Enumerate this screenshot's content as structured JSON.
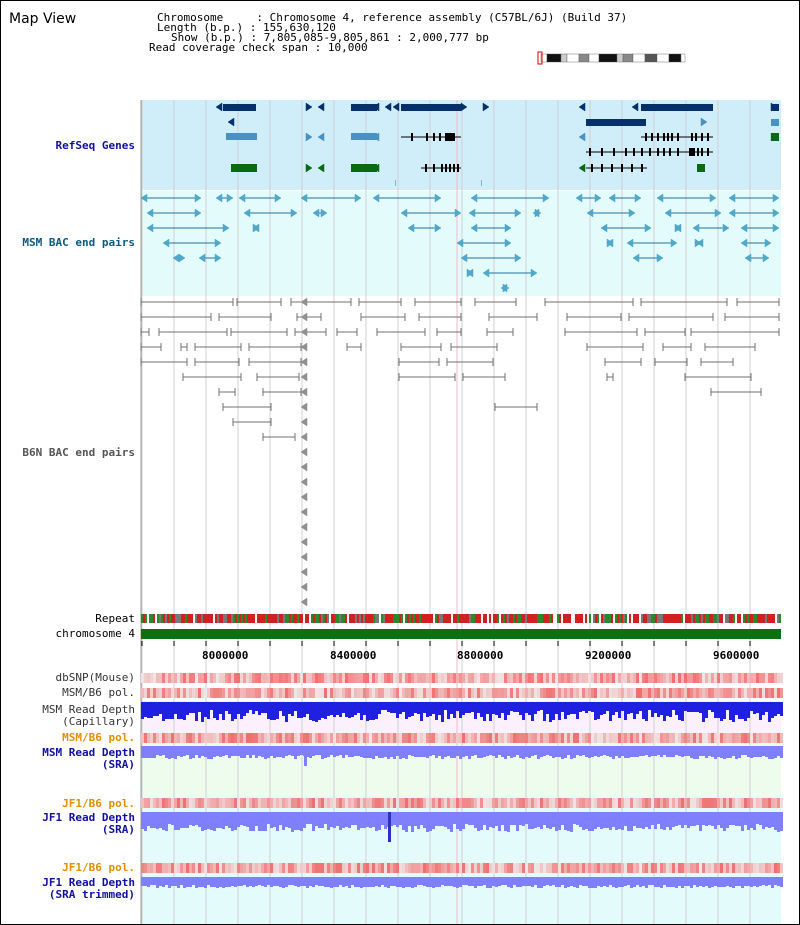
{
  "title": "Map View",
  "info": {
    "chromosome_label": "Chromosome     ",
    "chromosome_value": "Chromosome 4, reference assembly (C57BL/6J) (Build 37)",
    "length_label": "Length (b.p.) ",
    "length_value": "155,630,120",
    "show_label": "Show (b.p.) ",
    "show_value": "7,805,085-9,805,861 : 2,000,777 bp",
    "coverage_label": "Read coverage check span",
    "coverage_value": "10,000"
  },
  "tracks": {
    "refseq": "RefSeq Genes",
    "msm_bac": "MSM BAC end pairs",
    "b6n_bac": "B6N BAC end pairs",
    "repeat": "Repeat",
    "chromosome": "chromosome 4",
    "dbsnp": "dbSNP(Mouse)",
    "msm_b6_pol": "MSM/B6 pol.",
    "msm_read_cap_1": "MSM Read Depth",
    "msm_read_cap_2": "(Capillary)",
    "msm_b6_pol2": "MSM/B6 pol.",
    "msm_read_sra_1": "MSM Read Depth",
    "msm_read_sra_2": "(SRA)",
    "jf1_b6_pol": "JF1/B6 pol.",
    "jf1_read_sra_1": "JF1 Read Depth",
    "jf1_read_sra_2": "(SRA)",
    "jf1_b6_pol2": "JF1/B6 pol.",
    "jf1_read_trim_1": "JF1 Read Depth",
    "jf1_read_trim_2": "(SRA trimmed)"
  },
  "axis_ticks": [
    "8000000",
    "8400000",
    "8800000",
    "9200000",
    "9600000"
  ],
  "colors": {
    "refseq_bg": "#cfeefa",
    "msm_bg": "#e3fbfb",
    "dark_gene": "#06306a",
    "mid_gene": "#4a90c0",
    "green_gene": "#0a6a12",
    "label_blue": "#1010a0",
    "label_orange": "#e09000",
    "read_blue": "#2020e0",
    "light_blue": "#7f7fff",
    "pol_red": "#f04040",
    "chromosome_green": "#0a7010",
    "repeat_red": "#d02020"
  }
}
